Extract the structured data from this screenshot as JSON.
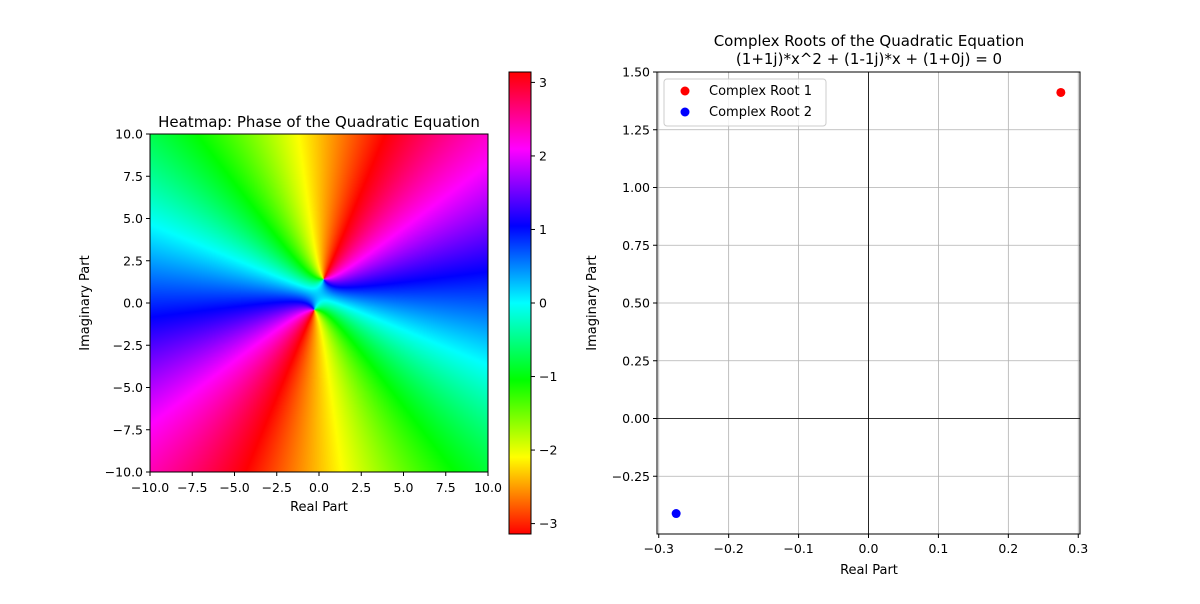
{
  "chart_data": [
    {
      "type": "heatmap",
      "title": "Heatmap: Phase of the Quadratic Equation",
      "xlabel": "Real Part",
      "ylabel": "Imaginary Part",
      "xlim": [
        -10,
        10
      ],
      "ylim": [
        -10,
        10
      ],
      "xticks": [
        -10,
        -7.5,
        -5,
        -2.5,
        0,
        2.5,
        5,
        7.5,
        10
      ],
      "yticks": [
        -10,
        -7.5,
        -5,
        -2.5,
        0,
        2.5,
        5,
        7.5,
        10
      ],
      "xtick_labels": [
        "−10.0",
        "−7.5",
        "−5.0",
        "−2.5",
        "0.0",
        "2.5",
        "5.0",
        "7.5",
        "10.0"
      ],
      "ytick_labels": [
        "−10.0",
        "−7.5",
        "−5.0",
        "−2.5",
        "0.0",
        "2.5",
        "5.0",
        "7.5",
        "10.0"
      ],
      "function": {
        "a": [
          1,
          1
        ],
        "b": [
          1,
          -1
        ],
        "c": [
          1,
          0
        ]
      },
      "colormap": "hsv",
      "colorbar": {
        "range": [
          -3.14159,
          3.14159
        ],
        "ticks": [
          -3,
          -2,
          -1,
          0,
          1,
          2,
          3
        ],
        "tick_labels": [
          "−3",
          "−2",
          "−1",
          "0",
          "1",
          "2",
          "3"
        ]
      }
    },
    {
      "type": "scatter",
      "title": "Complex Roots of the Quadratic Equation",
      "subtitle": "(1+1j)*x^2 + (1-1j)*x + (1+0j) = 0",
      "xlabel": "Real Part",
      "ylabel": "Imaginary Part",
      "xlim": [
        -0.3025,
        0.3025
      ],
      "ylim": [
        -0.5,
        1.5
      ],
      "xticks": [
        -0.3,
        -0.2,
        -0.1,
        0.0,
        0.1,
        0.2,
        0.3
      ],
      "yticks": [
        -0.25,
        0.0,
        0.25,
        0.5,
        0.75,
        1.0,
        1.25,
        1.5
      ],
      "xtick_labels": [
        "−0.3",
        "−0.2",
        "−0.1",
        "0.0",
        "0.1",
        "0.2",
        "0.3"
      ],
      "ytick_labels": [
        "−0.25",
        "0.00",
        "0.25",
        "0.50",
        "0.75",
        "1.00",
        "1.25",
        "1.50"
      ],
      "grid": true,
      "legend_position": "top-left",
      "series": [
        {
          "name": "Complex Root 1",
          "x": 0.2751,
          "y": 1.4114,
          "color": "#ff0000"
        },
        {
          "name": "Complex Root 2",
          "x": -0.2751,
          "y": -0.4114,
          "color": "#0000ff"
        }
      ]
    }
  ]
}
